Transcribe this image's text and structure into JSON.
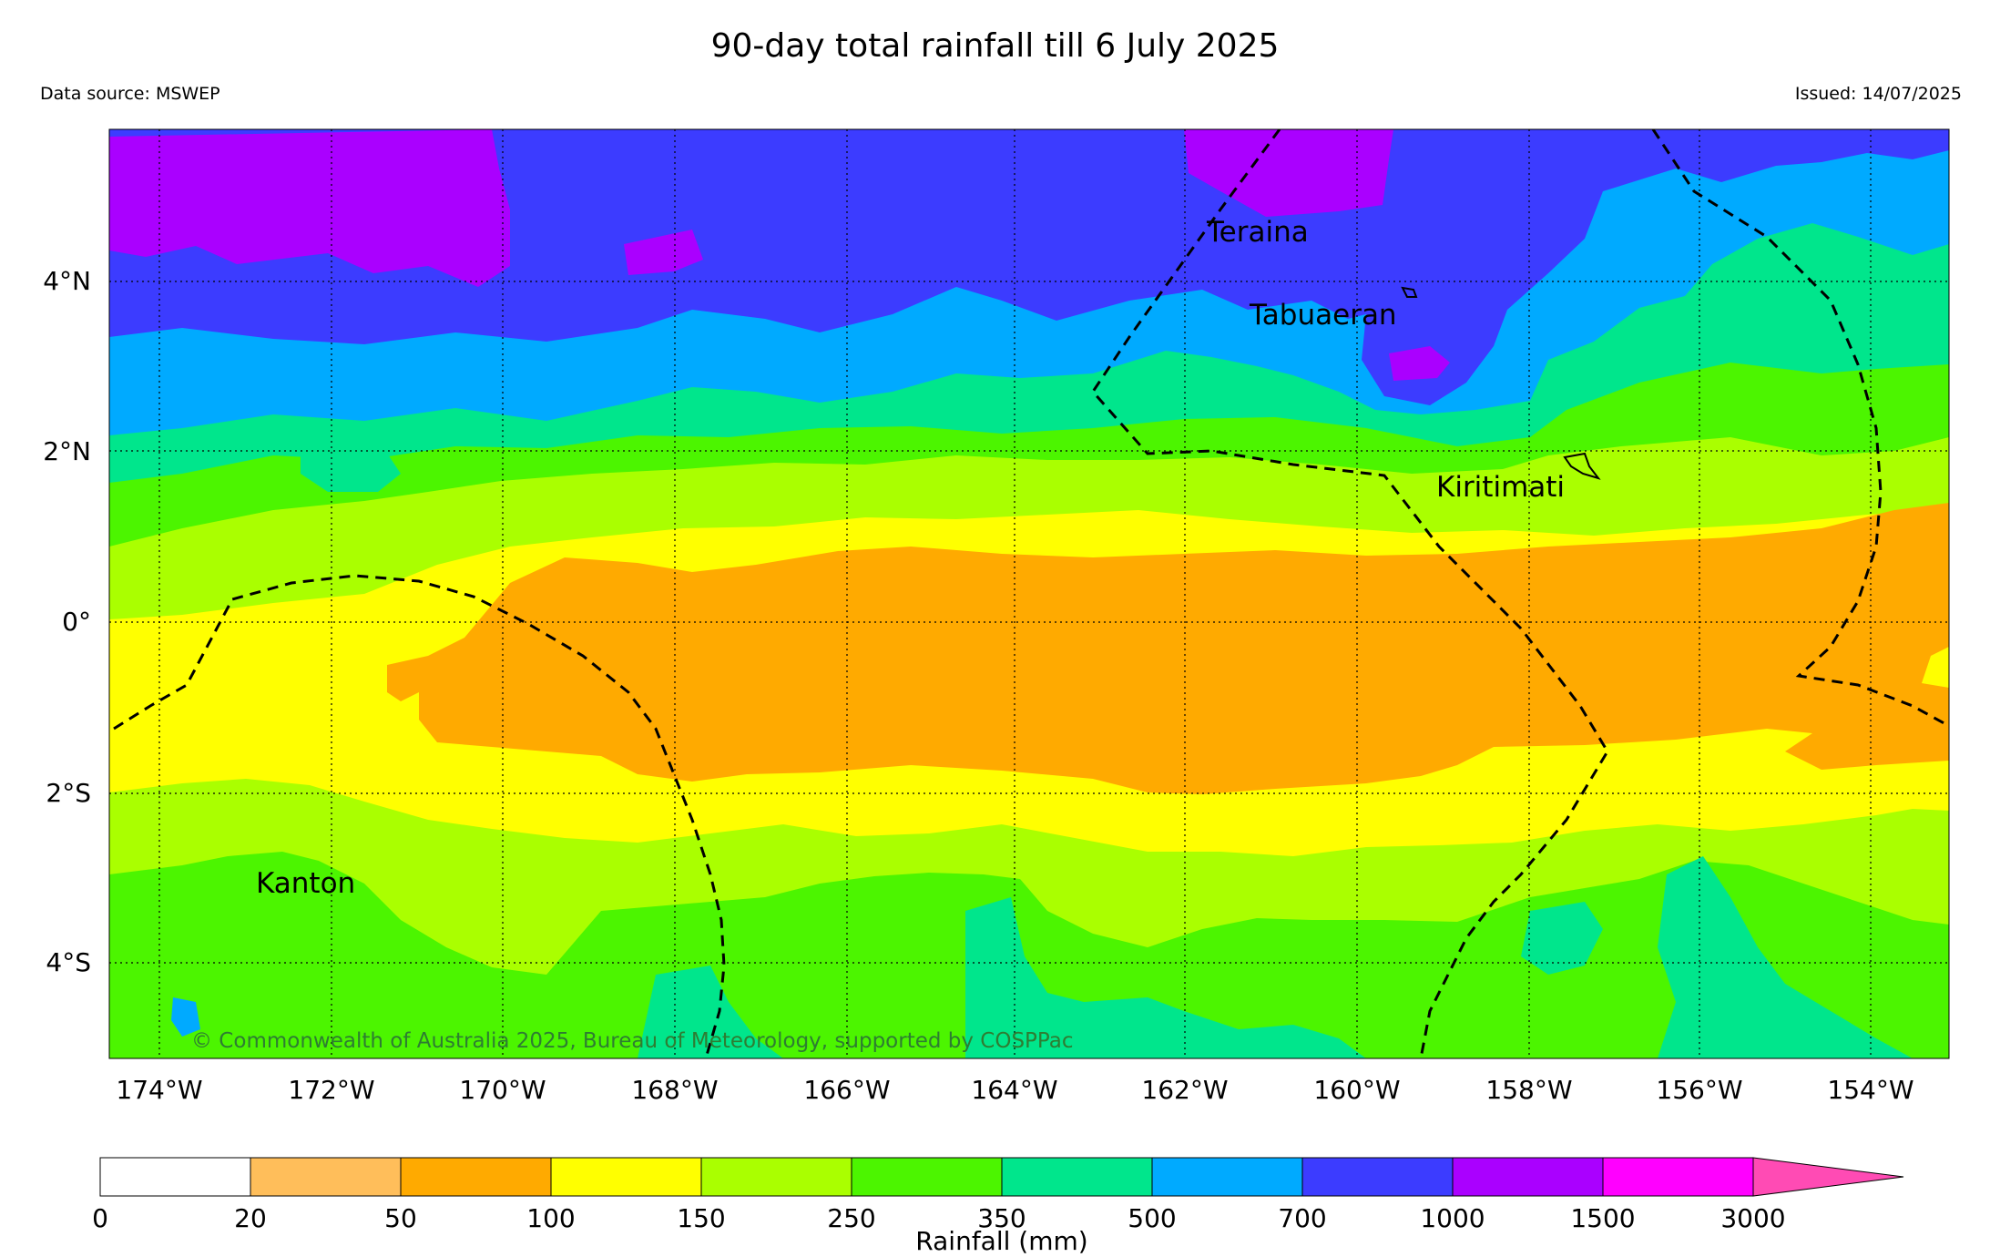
{
  "header": {
    "title": "90-day total rainfall till 6 July 2025",
    "source": "Data source: MSWEP",
    "issued": "Issued: 14/07/2025"
  },
  "map": {
    "lon_labels": [
      "174°W",
      "172°W",
      "170°W",
      "168°W",
      "166°W",
      "164°W",
      "162°W",
      "160°W",
      "158°W",
      "156°W",
      "154°W"
    ],
    "lat_labels": [
      "4°N",
      "2°N",
      "0°",
      "2°S",
      "4°S"
    ],
    "islands": {
      "teraina": "Teraina",
      "tabuaeran": "Tabuaeran",
      "kiritimati": "Kiritimati",
      "kanton": "Kanton"
    },
    "copyright": "© Commonwealth of Australia 2025, Bureau of Meteorology, supported by COSPPac"
  },
  "colorbar": {
    "label": "Rainfall (mm)",
    "ticks": [
      "0",
      "20",
      "50",
      "100",
      "150",
      "250",
      "350",
      "500",
      "700",
      "1000",
      "1500",
      "3000"
    ],
    "colors": [
      "#ffffff",
      "#ffbe5a",
      "#ffaa00",
      "#ffff00",
      "#aaff00",
      "#4cf500",
      "#00e68c",
      "#00aaff",
      "#3c3cff",
      "#aa00ff",
      "#ff00ff",
      "#ff4bb4"
    ]
  },
  "colors": {
    "r100_150": "#ffff00",
    "r50_100": "#ffaa00",
    "r150_250": "#aaff00",
    "r250_350": "#4cf500",
    "r350_500": "#00e68c",
    "r500_700": "#00aaff",
    "r700_1000": "#3c3cff",
    "r1000_1500": "#aa00ff"
  }
}
